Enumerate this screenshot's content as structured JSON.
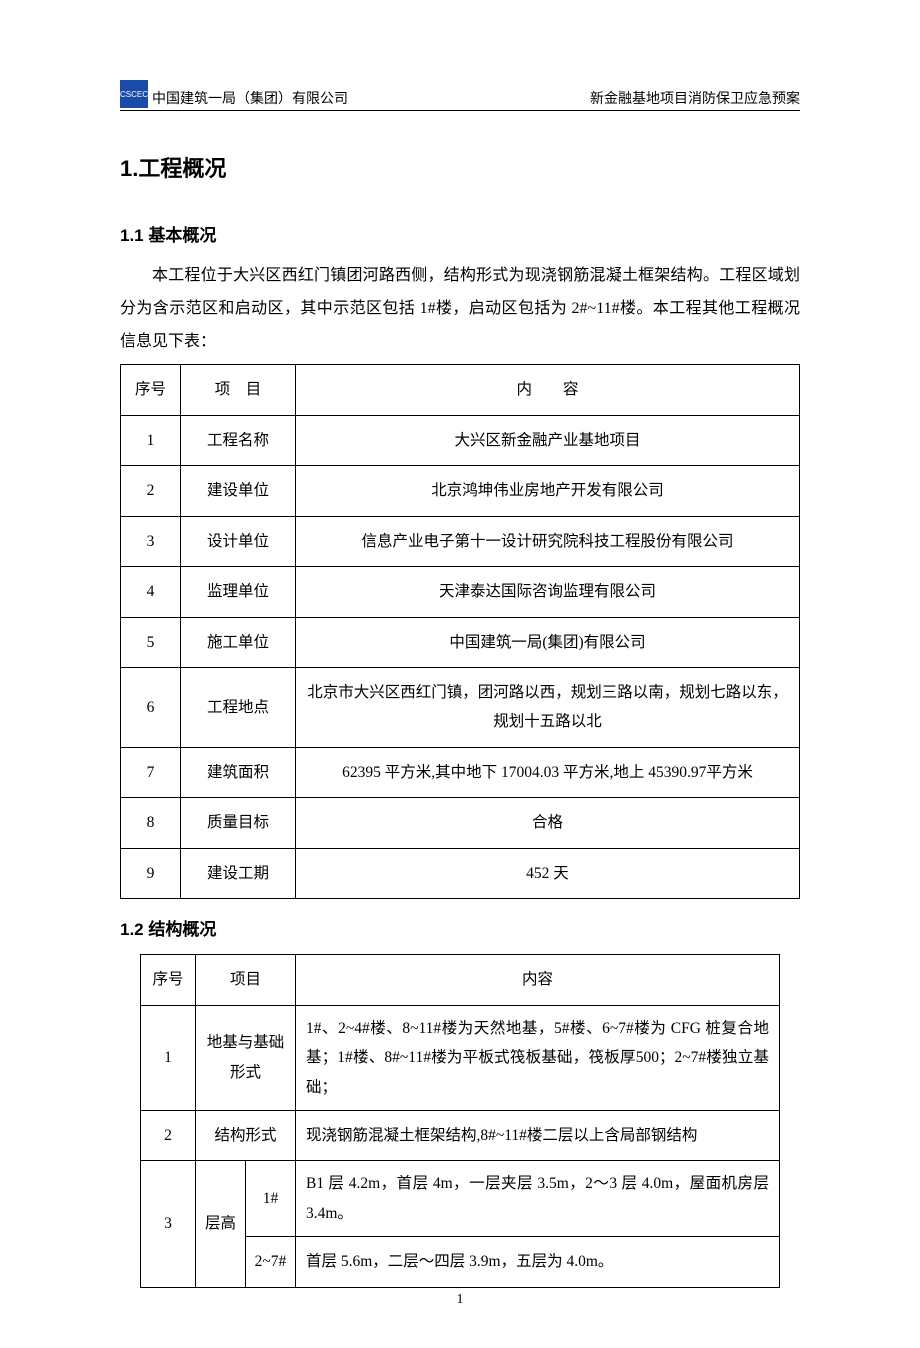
{
  "header": {
    "company": "中国建筑一局（集团）有限公司",
    "doc_title": "新金融基地项目消防保卫应急预案",
    "logo_text": "CSCEC"
  },
  "section1": {
    "title": "1.工程概况",
    "sub1_title": "1.1 基本概况",
    "intro": "本工程位于大兴区西红门镇团河路西侧，结构形式为现浇钢筋混凝土框架结构。工程区域划分为含示范区和启动区，其中示范区包括 1#楼，启动区包括为 2#~11#楼。本工程其他工程概况信息见下表：",
    "table1": {
      "header": {
        "c1": "序号",
        "c2": "项　目",
        "c3": "内　　容"
      },
      "rows": [
        {
          "n": "1",
          "k": "工程名称",
          "v": "大兴区新金融产业基地项目"
        },
        {
          "n": "2",
          "k": "建设单位",
          "v": "北京鸿坤伟业房地产开发有限公司"
        },
        {
          "n": "3",
          "k": "设计单位",
          "v": "信息产业电子第十一设计研究院科技工程股份有限公司"
        },
        {
          "n": "4",
          "k": "监理单位",
          "v": "天津泰达国际咨询监理有限公司"
        },
        {
          "n": "5",
          "k": "施工单位",
          "v": "中国建筑一局(集团)有限公司"
        },
        {
          "n": "6",
          "k": "工程地点",
          "v": "北京市大兴区西红门镇，团河路以西，规划三路以南，规划七路以东，规划十五路以北"
        },
        {
          "n": "7",
          "k": "建筑面积",
          "v": "62395 平方米,其中地下 17004.03 平方米,地上 45390.97平方米"
        },
        {
          "n": "8",
          "k": "质量目标",
          "v": "合格"
        },
        {
          "n": "9",
          "k": "建设工期",
          "v": "452 天"
        }
      ]
    },
    "sub2_title": "1.2 结构概况",
    "table2": {
      "header": {
        "c1": "序号",
        "c2": "项目",
        "c3": "内容"
      },
      "r1": {
        "n": "1",
        "k": "地基与基础形式",
        "v": "1#、2~4#楼、8~11#楼为天然地基，5#楼、6~7#楼为 CFG 桩复合地基；1#楼、8#~11#楼为平板式筏板基础，筏板厚500；2~7#楼独立基础；"
      },
      "r2": {
        "n": "2",
        "k": "结构形式",
        "v": "现浇钢筋混凝土框架结构,8#~11#楼二层以上含局部钢结构"
      },
      "r3": {
        "n": "3",
        "k": "层高",
        "sub1": {
          "k": "1#",
          "v": "B1 层 4.2m，首层 4m，一层夹层 3.5m，2～3 层 4.0m，屋面机房层 3.4m。"
        },
        "sub2": {
          "k": "2~7#",
          "v": "首层 5.6m，二层～四层 3.9m，五层为 4.0m。"
        }
      }
    }
  },
  "page_number": "1"
}
